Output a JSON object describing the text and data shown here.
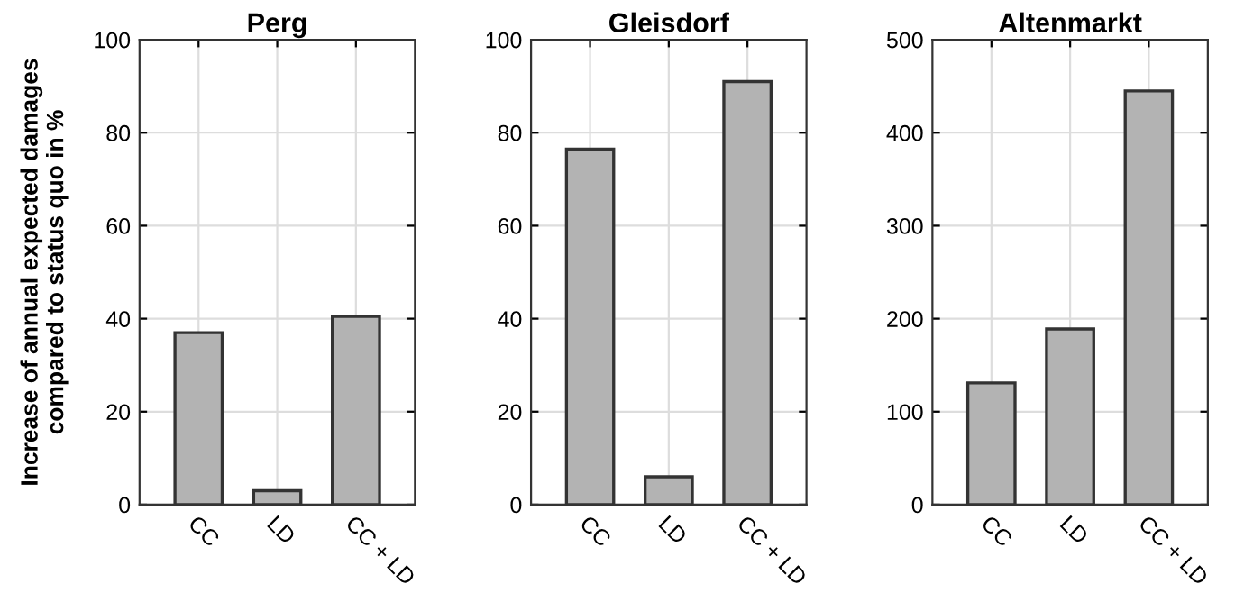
{
  "chart_data": [
    {
      "type": "bar",
      "title": "Perg",
      "ylabel": "Increase of annual expected damages compared to status quo in %",
      "categories": [
        "CC",
        "LD",
        "CC + LD"
      ],
      "values": [
        37,
        3,
        40.5
      ],
      "color": "#b3b3b3",
      "ylim": [
        0,
        100
      ],
      "yticks": [
        0,
        20,
        40,
        60,
        80,
        100
      ],
      "grid": true
    },
    {
      "type": "bar",
      "title": "Gleisdorf",
      "categories": [
        "CC",
        "LD",
        "CC + LD"
      ],
      "values": [
        76.5,
        6,
        91
      ],
      "color": "#b3b3b3",
      "ylim": [
        0,
        100
      ],
      "yticks": [
        0,
        20,
        40,
        60,
        80,
        100
      ],
      "grid": true
    },
    {
      "type": "bar",
      "title": "Altenmarkt",
      "categories": [
        "CC",
        "LD",
        "CC + LD"
      ],
      "values": [
        131,
        189,
        445
      ],
      "color": "#b3b3b3",
      "ylim": [
        0,
        500
      ],
      "yticks": [
        0,
        100,
        200,
        300,
        400,
        500
      ],
      "grid": true
    }
  ]
}
